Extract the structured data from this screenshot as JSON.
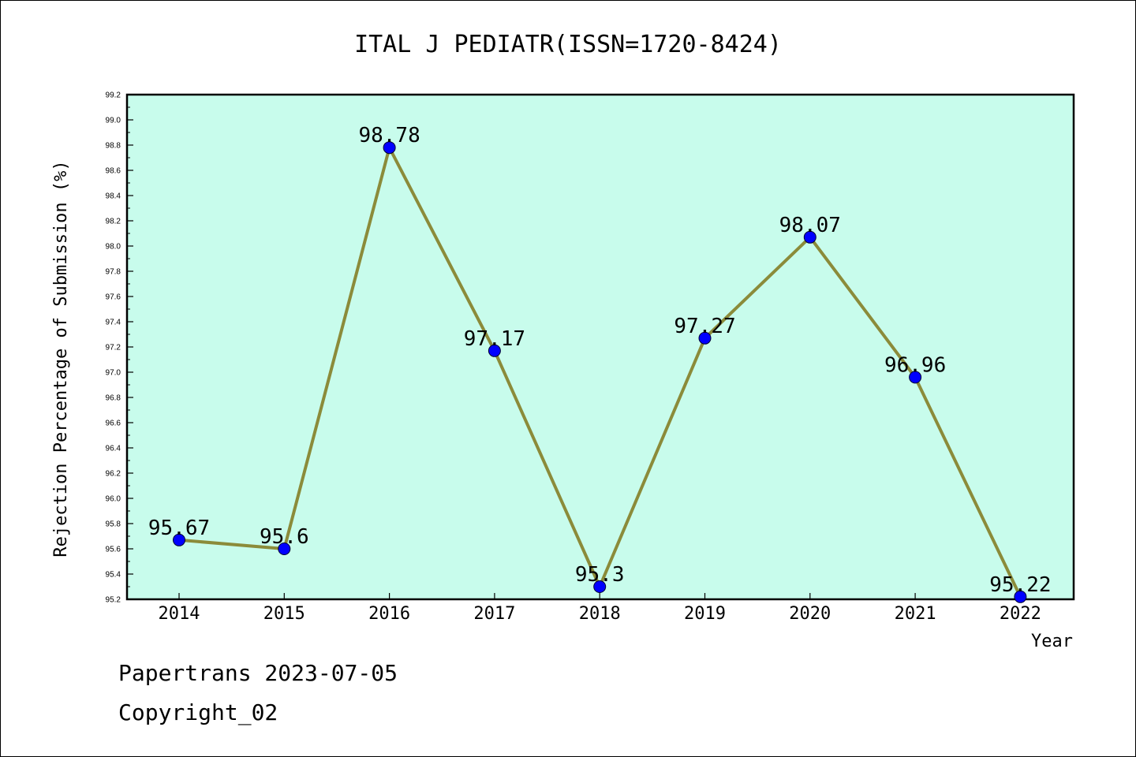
{
  "chart_data": {
    "type": "line",
    "title": "ITAL J PEDIATR(ISSN=1720-8424)",
    "xlabel": "Year",
    "ylabel": "Rejection Percentage of Submission (%)",
    "categories": [
      "2014",
      "2015",
      "2016",
      "2017",
      "2018",
      "2019",
      "2020",
      "2021",
      "2022"
    ],
    "values": [
      95.67,
      95.6,
      98.78,
      97.17,
      95.3,
      97.27,
      98.07,
      96.96,
      95.22
    ],
    "data_labels": [
      "95.67",
      "95.6",
      "98.78",
      "97.17",
      "95.3",
      "97.27",
      "98.07",
      "96.96",
      "95.22"
    ],
    "ylim": [
      95.2,
      99.2
    ],
    "yticks": [
      "95.2",
      "95.4",
      "95.6",
      "95.8",
      "96.0",
      "96.2",
      "96.4",
      "96.6",
      "96.8",
      "97.0",
      "97.2",
      "97.4",
      "97.6",
      "97.8",
      "98.0",
      "98.2",
      "98.4",
      "98.6",
      "98.8",
      "99.0",
      "99.2"
    ],
    "grid": false,
    "colors": {
      "plot_background": "#c8fcec",
      "line": "#8b8b3a",
      "marker": "#0000ff"
    }
  },
  "footer": {
    "line1": "Papertrans 2023-07-05",
    "line2": "Copyright_02"
  }
}
